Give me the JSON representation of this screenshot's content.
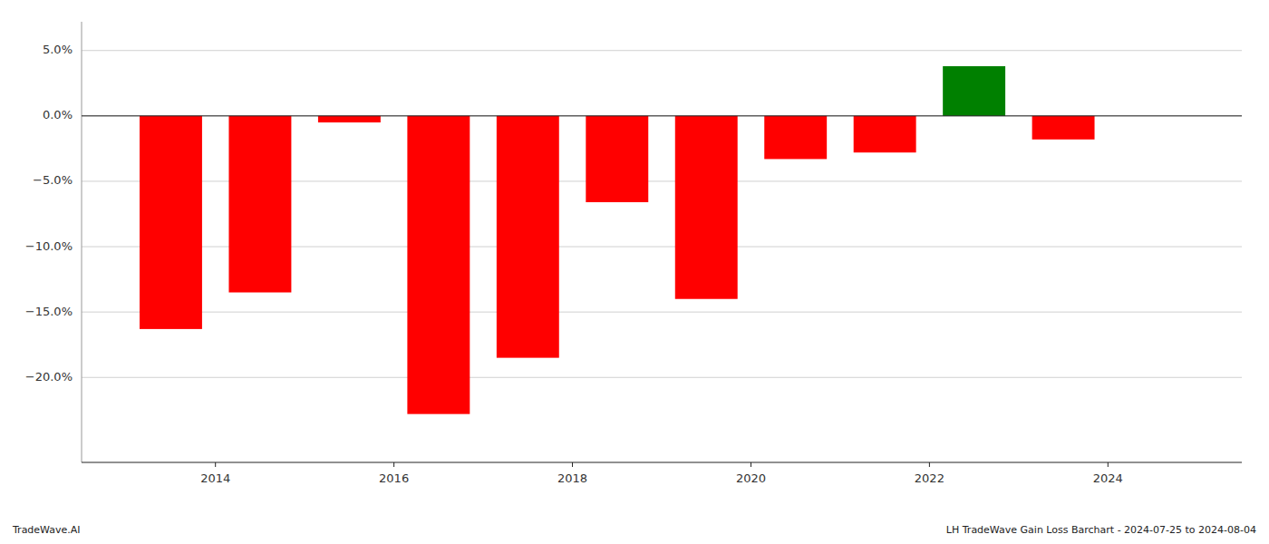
{
  "chart_data": {
    "type": "bar",
    "x": [
      2013.5,
      2014.5,
      2015.5,
      2016.5,
      2017.5,
      2018.5,
      2019.5,
      2020.5,
      2021.5,
      2022.5,
      2023.5
    ],
    "values": [
      -0.163,
      -0.135,
      -0.005,
      -0.228,
      -0.185,
      -0.066,
      -0.14,
      -0.033,
      -0.028,
      0.038,
      -0.018
    ],
    "colors": [
      "#ff0000",
      "#ff0000",
      "#ff0000",
      "#ff0000",
      "#ff0000",
      "#ff0000",
      "#ff0000",
      "#ff0000",
      "#ff0000",
      "#008000",
      "#ff0000"
    ],
    "xlim": [
      2012.5,
      2025.5
    ],
    "xticks": [
      2014,
      2016,
      2018,
      2020,
      2022,
      2024
    ],
    "ylim": [
      -0.265,
      0.072
    ],
    "yticks": [
      {
        "value": 0.05,
        "label": "5.0%"
      },
      {
        "value": 0.0,
        "label": "0.0%"
      },
      {
        "value": -0.05,
        "label": "−5.0%"
      },
      {
        "value": -0.1,
        "label": "−10.0%"
      },
      {
        "value": -0.15,
        "label": "−15.0%"
      },
      {
        "value": -0.2,
        "label": "−20.0%"
      }
    ],
    "grid": true,
    "annotations": [
      "TradeWave.AI",
      "LH TradeWave Gain Loss Barchart - 2024-07-25 to 2024-08-04"
    ]
  }
}
